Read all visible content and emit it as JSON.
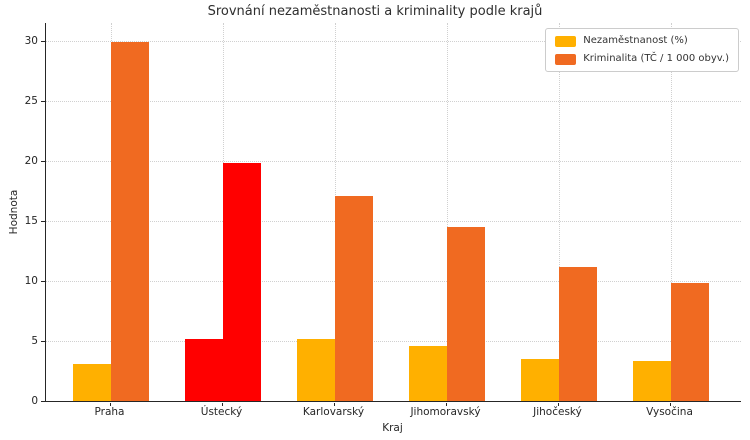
{
  "chart_data": {
    "type": "bar",
    "title": "Srovnání nezaměstnanosti a kriminality podle krajů",
    "xlabel": "Kraj",
    "ylabel": "Hodnota",
    "categories": [
      "Praha",
      "Ústecký",
      "Karlovarský",
      "Jihomoravský",
      "Jihočeský",
      "Vysočina"
    ],
    "series": [
      {
        "name": "Nezaměstnanost (%)",
        "color": "#FFB000",
        "values": [
          3.1,
          5.2,
          5.2,
          4.6,
          3.5,
          3.3
        ]
      },
      {
        "name": "Kriminalita (TČ / 1 000 obyv.)",
        "color": "#F06A21",
        "values": [
          29.9,
          19.8,
          17.1,
          14.5,
          11.2,
          9.8
        ]
      }
    ],
    "highlight": {
      "category": "Ústecký",
      "color": "#FF0000"
    },
    "ylim": [
      0,
      30
    ],
    "yticks": [
      0,
      5,
      10,
      15,
      20,
      25,
      30
    ],
    "grid": {
      "horizontal": true,
      "vertical": true,
      "style": "dotted"
    },
    "legend_position": "upper-right",
    "colors": {
      "background": "#FFFFFF",
      "grid": "#D0D0D0",
      "axis": "#262626",
      "text": "#2E2E2E",
      "legend_border": "#CCCCCC"
    }
  }
}
